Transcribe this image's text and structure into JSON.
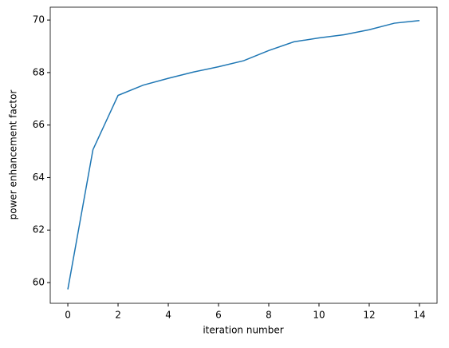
{
  "chart_data": {
    "type": "line",
    "xlabel": "iteration number",
    "ylabel": "power enhancement factor",
    "x": [
      0,
      1,
      2,
      3,
      4,
      5,
      6,
      7,
      8,
      9,
      10,
      11,
      12,
      13,
      14
    ],
    "series": [
      {
        "color": "#1f77b4",
        "values": [
          59.74,
          65.06,
          67.13,
          67.52,
          67.78,
          68.02,
          68.22,
          68.45,
          68.84,
          69.17,
          69.32,
          69.44,
          69.63,
          69.88,
          69.98
        ]
      }
    ],
    "xlim": [
      -0.7,
      14.7
    ],
    "ylim": [
      59.21,
      70.49
    ],
    "xticks": [
      0,
      2,
      4,
      6,
      8,
      10,
      12,
      14
    ],
    "yticks": [
      60,
      62,
      64,
      66,
      68,
      70
    ]
  }
}
